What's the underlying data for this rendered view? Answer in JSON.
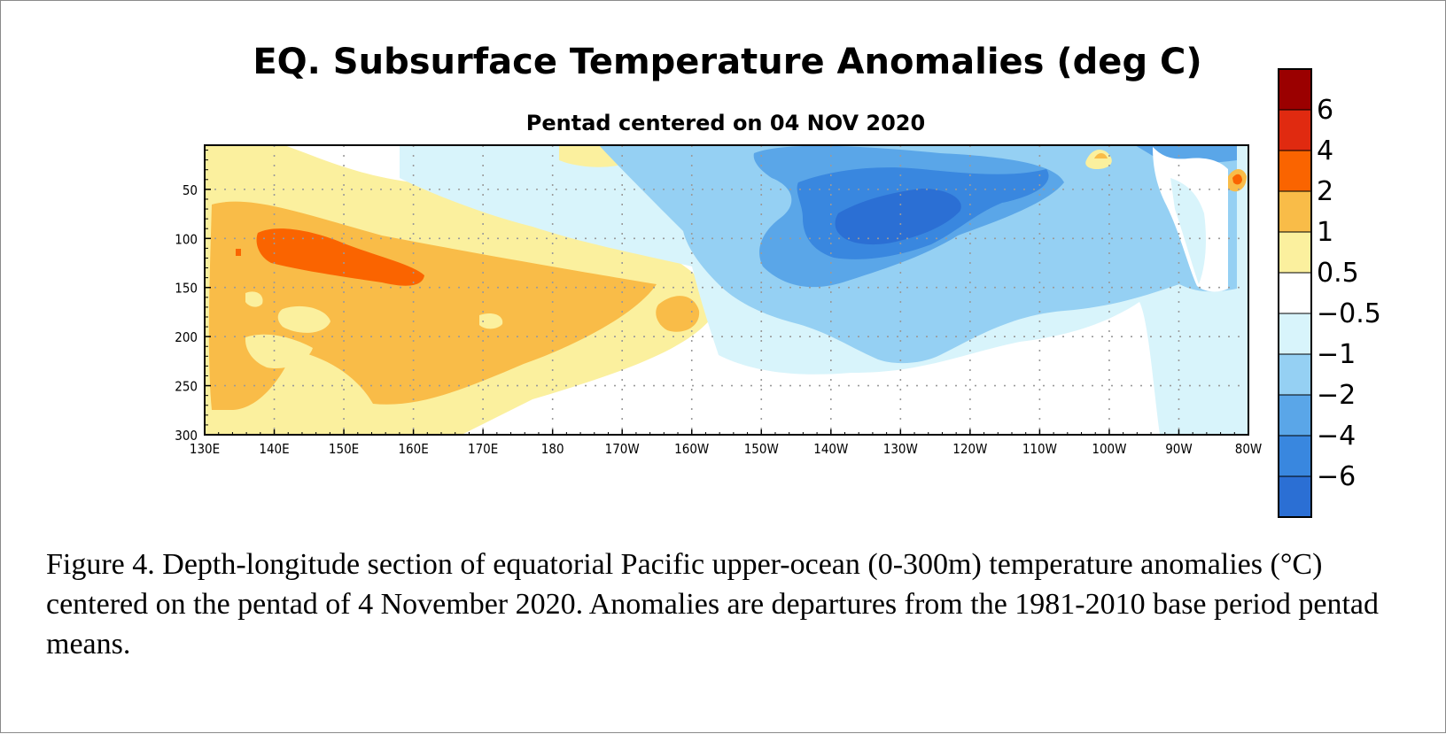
{
  "chart_data": {
    "type": "heatmap",
    "title": "EQ. Subsurface Temperature Anomalies (deg C)",
    "subtitle": "Pentad centered on 04 NOV 2020",
    "x_tick_labels": [
      "130E",
      "140E",
      "150E",
      "160E",
      "170E",
      "180",
      "170W",
      "160W",
      "150W",
      "140W",
      "130W",
      "120W",
      "110W",
      "100W",
      "90W",
      "80W"
    ],
    "x_range_deg_east": [
      130,
      280
    ],
    "y_tick_labels": [
      "50",
      "100",
      "150",
      "200",
      "250",
      "300"
    ],
    "y_ticks": [
      50,
      100,
      150,
      200,
      250,
      300
    ],
    "y_range_m": [
      5,
      300
    ],
    "y_inverted": true,
    "grid": true,
    "colorbar": {
      "placement": "right",
      "labels": [
        "6",
        "4",
        "2",
        "1",
        "0.5",
        "−0.5",
        "−1",
        "−2",
        "−4",
        "−6"
      ],
      "colors": [
        "#9b0000",
        "#e02a10",
        "#fa6400",
        "#f9bc48",
        "#fbf09e",
        "#ffffff",
        "#d8f4fb",
        "#95d0f3",
        "#5aa6e8",
        "#3987df",
        "#2b6fd4"
      ]
    },
    "anomaly_features": [
      {
        "lon_center": 147,
        "depth_center": 100,
        "value_range": [
          2,
          4
        ],
        "sign": "warm"
      },
      {
        "lon_center": 160,
        "depth_center": 150,
        "value_range": [
          1,
          2
        ],
        "sign": "warm"
      },
      {
        "lon_center": 137,
        "depth_center": 230,
        "value_range": [
          1,
          2
        ],
        "sign": "warm"
      },
      {
        "lon_center": 150,
        "depth_center": 40,
        "value_range": [
          0.5,
          1
        ],
        "sign": "warm"
      },
      {
        "lon_center": 226,
        "depth_center": 90,
        "value_range": [
          -4,
          -6
        ],
        "sign": "cold"
      },
      {
        "lon_center": 225,
        "depth_center": 100,
        "value_range": [
          -2,
          -4
        ],
        "sign": "cold"
      },
      {
        "lon_center": 230,
        "depth_center": 120,
        "value_range": [
          -1,
          -2
        ],
        "sign": "cold"
      },
      {
        "lon_center": 225,
        "depth_center": 130,
        "value_range": [
          -0.5,
          -1
        ],
        "sign": "cold"
      },
      {
        "lon_center": 260,
        "depth_center": 20,
        "value_range": [
          1,
          2
        ],
        "sign": "warm"
      },
      {
        "lon_center": 279,
        "depth_center": 38,
        "value_range": [
          1,
          2
        ],
        "sign": "warm"
      }
    ]
  },
  "caption": "Figure 4. Depth-longitude section of equatorial Pacific upper-ocean (0-300m) temperature anomalies (°C) centered on the pentad of 4 November 2020. Anomalies are departures from the 1981-2010 base period pentad means."
}
